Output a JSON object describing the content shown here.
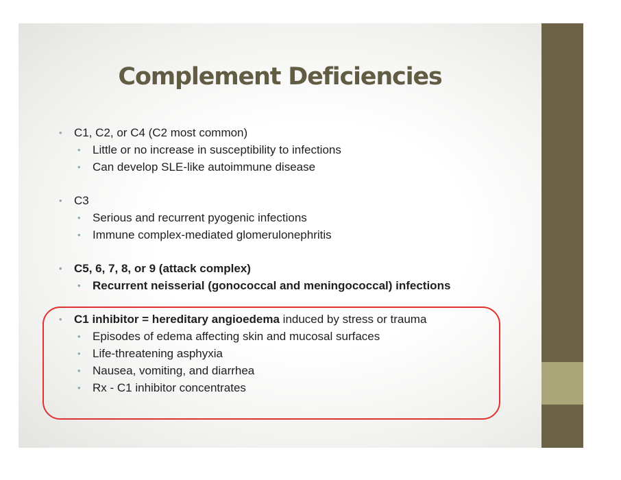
{
  "title": "Complement Deficiencies",
  "sections": [
    {
      "heading": "C1, C2, or C4 (C2 most common)",
      "items": [
        "Little or no increase in susceptibility to infections",
        "Can develop SLE-like autoimmune disease"
      ]
    },
    {
      "heading": "C3",
      "items": [
        "Serious and recurrent pyogenic infections",
        "Immune complex-mediated glomerulonephritis"
      ]
    },
    {
      "heading": "C5, 6, 7, 8, or 9 (attack complex)",
      "items": [
        "Recurrent neisserial (gonococcal and meningococcal) infections"
      ]
    },
    {
      "heading_bold": "C1 inhibitor = hereditary angioedema",
      "heading_rest": " induced by stress or trauma",
      "items": [
        "Episodes of edema affecting skin and mucosal surfaces",
        "Life-threatening asphyxia",
        "Nausea, vomiting, and diarrhea",
        "Rx - C1 inhibitor concentrates"
      ]
    }
  ],
  "bullet_glyph": "•",
  "colors": {
    "title": "#615c43",
    "side_bar": "#6b6248",
    "side_accent": "#aba67a",
    "bullet": "#8fa8a8",
    "highlight_border": "#e0312f"
  }
}
